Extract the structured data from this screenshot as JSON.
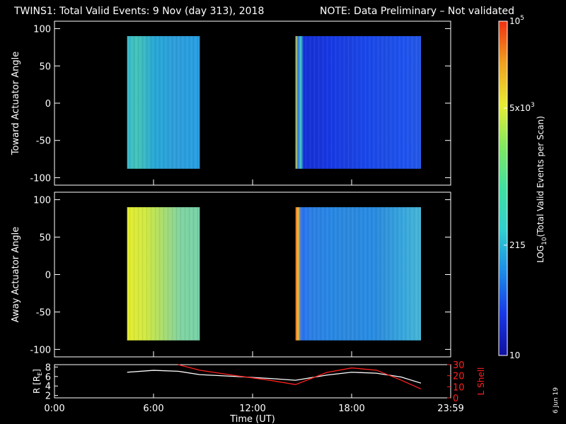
{
  "title": {
    "main": "TWINS1: Total Valid Events:  9 Nov (day 313), 2018",
    "note": "NOTE: Data Preliminary – Not validated",
    "note_color": "#ff2020"
  },
  "stamp": "6 Jun 19",
  "chart_data": [
    {
      "type": "heatmap",
      "panel": "top",
      "ylabel": "Toward Actuator Angle",
      "ylim": [
        -110,
        110
      ],
      "yticks": [
        "100",
        "50",
        "0",
        "-50",
        "-100"
      ],
      "x_hours": [
        0,
        24
      ],
      "data_blocks": [
        {
          "start_hour": 4.4,
          "end_hour": 8.8,
          "angle_range": [
            -88,
            90
          ],
          "profile": [
            {
              "h": 4.4,
              "c": "#3ab8cc"
            },
            {
              "h": 5.0,
              "c": "#42c4b8"
            },
            {
              "h": 6.0,
              "c": "#2aa8d4"
            },
            {
              "h": 7.2,
              "c": "#2c9edc"
            },
            {
              "h": 8.8,
              "c": "#2a9ee0"
            }
          ]
        },
        {
          "start_hour": 14.6,
          "end_hour": 22.2,
          "angle_range": [
            -88,
            90
          ],
          "profile": [
            {
              "h": 14.6,
              "c": "#f0e820"
            },
            {
              "h": 14.75,
              "c": "#2a6cf0"
            },
            {
              "h": 14.9,
              "c": "#48d0c0"
            },
            {
              "h": 15.1,
              "c": "#1430d8"
            },
            {
              "h": 16.5,
              "c": "#1838e0"
            },
            {
              "h": 19.0,
              "c": "#1a48e8"
            },
            {
              "h": 22.2,
              "c": "#2258ec"
            }
          ]
        }
      ]
    },
    {
      "type": "heatmap",
      "panel": "bottom",
      "ylabel": "Away Actuator Angle",
      "ylim": [
        -110,
        110
      ],
      "yticks": [
        "100",
        "50",
        "0",
        "-50",
        "-100"
      ],
      "x_hours": [
        0,
        24
      ],
      "data_blocks": [
        {
          "start_hour": 4.4,
          "end_hour": 8.8,
          "angle_range": [
            -88,
            90
          ],
          "profile": [
            {
              "h": 4.4,
              "c": "#e4ec30"
            },
            {
              "h": 5.5,
              "c": "#d0ea40"
            },
            {
              "h": 6.6,
              "c": "#a8dc70"
            },
            {
              "h": 7.6,
              "c": "#80d4a0"
            },
            {
              "h": 8.8,
              "c": "#78d0a8"
            }
          ]
        },
        {
          "start_hour": 14.6,
          "end_hour": 22.2,
          "angle_range": [
            -88,
            90
          ],
          "profile": [
            {
              "h": 14.6,
              "c": "#f06020"
            },
            {
              "h": 14.75,
              "c": "#f0c030"
            },
            {
              "h": 14.95,
              "c": "#2c70f0"
            },
            {
              "h": 15.5,
              "c": "#2a80e8"
            },
            {
              "h": 17.0,
              "c": "#2a88e0"
            },
            {
              "h": 19.5,
              "c": "#2a8ce0"
            },
            {
              "h": 22.2,
              "c": "#44b8d8"
            }
          ]
        }
      ]
    },
    {
      "type": "line",
      "panel": "ephemeris",
      "ylabel_left": "R [R",
      "ylabel_left_sub": "E",
      "ylabel_left_close": "]",
      "ylabel_right": "L Shell",
      "y_left_ticks": [
        "8",
        "6",
        "4",
        "2"
      ],
      "y_left_range": [
        1.5,
        8.5
      ],
      "y_right_ticks": [
        "30",
        "20",
        "10",
        "0"
      ],
      "y_right_range": [
        0,
        30
      ],
      "series": [
        {
          "axis": "left",
          "color": "#ffffff",
          "x": [
            4.4,
            6.0,
            7.5,
            8.8,
            11.0,
            13.0,
            14.6,
            16.5,
            18.0,
            19.5,
            21.0,
            22.2
          ],
          "y": [
            6.9,
            7.3,
            7.1,
            6.4,
            6.0,
            5.6,
            5.2,
            6.3,
            6.9,
            6.7,
            5.9,
            4.6
          ]
        },
        {
          "axis": "right",
          "color": "#ff2020",
          "x": [
            7.5,
            8.8,
            11.0,
            13.0,
            14.6,
            16.5,
            18.0,
            19.5,
            21.0,
            22.2
          ],
          "y": [
            31,
            25,
            20,
            16,
            12,
            23,
            27,
            25,
            16,
            8
          ]
        }
      ],
      "xlabel": "Time (UT)",
      "xticks": [
        {
          "h": 0,
          "label": "0:00"
        },
        {
          "h": 6,
          "label": "6:00"
        },
        {
          "h": 12,
          "label": "12:00"
        },
        {
          "h": 18,
          "label": "18:00"
        },
        {
          "h": 24,
          "label": "23:59"
        }
      ]
    }
  ],
  "colorbar": {
    "label": "LOG",
    "label_sub": "10",
    "label_rest": "(Total Valid Events per Scan)",
    "ticks": [
      {
        "frac": 1.0,
        "base": "10",
        "sup": "5"
      },
      {
        "frac": 0.74,
        "base": "5x10",
        "sup": "3"
      },
      {
        "frac": 0.33,
        "base": "215",
        "sup": ""
      },
      {
        "frac": 0.0,
        "base": "10",
        "sup": ""
      }
    ],
    "stops": [
      "#1010a0",
      "#1838e8",
      "#1c8ce8",
      "#30d0d0",
      "#40e0a0",
      "#80e860",
      "#e8ec30",
      "#f0a020",
      "#f03010"
    ]
  }
}
